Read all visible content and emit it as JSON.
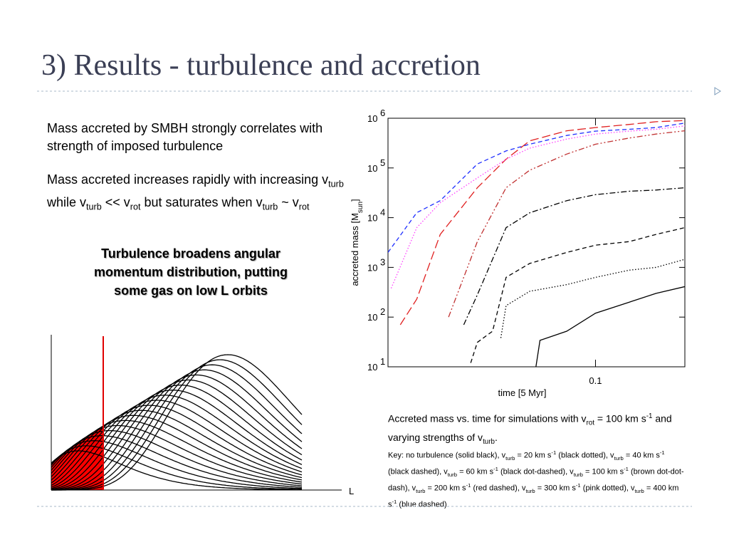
{
  "header": {
    "title": "3) Results - turbulence and accretion"
  },
  "body": {
    "bullets": [
      [
        "Mass accreted by SMBH strongly correlates with strength of imposed turbulence"
      ],
      [
        "Mass accreted increases rapidly with increasing v",
        {
          "sub": "turb"
        },
        " while v",
        {
          "sub": "turb"
        },
        " << v",
        {
          "sub": "rot"
        },
        " but saturates when v",
        {
          "sub": "turb"
        },
        " ~ v",
        {
          "sub": "rot"
        }
      ]
    ],
    "highlight": "Turbulence broadens angular momentum distribution, putting some gas on low L orbits"
  },
  "diagram": {
    "axis_label": "L"
  },
  "caption": [
    "Accreted mass vs. time for simulations with v",
    {
      "sub": "rot"
    },
    " = 100 km s",
    {
      "sup": "-1"
    },
    " and varying strengths of v",
    {
      "sub": "turb"
    },
    "."
  ],
  "key": [
    "Key: no turbulence (solid black), v",
    {
      "sub": "turb"
    },
    " = 20 km s",
    {
      "sup": "-1"
    },
    " (black dotted), v",
    {
      "sub": "turb"
    },
    " = 40 km s",
    {
      "sup": "-1"
    },
    " (black dashed), v",
    {
      "sub": "turb"
    },
    " = 60 km s",
    {
      "sup": "-1"
    },
    " (black dot-dashed), v",
    {
      "sub": "turb"
    },
    " = 100 km s",
    {
      "sup": "-1"
    },
    " (brown dot-dot-dash), v",
    {
      "sub": "turb"
    },
    " = 200 km s",
    {
      "sup": "-1"
    },
    " (red dashed), v",
    {
      "sub": "turb"
    },
    " = 300 km s",
    {
      "sup": "-1"
    },
    " (pink dotted), v",
    {
      "sub": "turb"
    },
    " = 400 km s",
    {
      "sup": "-1"
    },
    " (blue dashed)"
  ],
  "chart_data": {
    "type": "line",
    "xlabel": "time [5 Myr]",
    "ylabel": [
      "accreted mass [M",
      {
        "sub": "sun"
      },
      "]"
    ],
    "xscale": "log",
    "yscale": "log",
    "xlim": [
      0.02,
      0.2
    ],
    "ylim": [
      10,
      1000000
    ],
    "xticks": [
      0.1
    ],
    "yticks": [
      {
        "value": 10,
        "label": "10",
        "exponent": "1"
      },
      {
        "value": 100,
        "label": "10",
        "exponent": "2"
      },
      {
        "value": 1000,
        "label": "10",
        "exponent": "3"
      },
      {
        "value": 10000,
        "label": "10",
        "exponent": "4"
      },
      {
        "value": 100000,
        "label": "10",
        "exponent": "5"
      },
      {
        "value": 1000000,
        "label": "10",
        "exponent": "6"
      }
    ],
    "series": [
      {
        "color": "#000000",
        "style": "solid",
        "x": [
          0.063,
          0.065,
          0.08,
          0.1,
          0.13,
          0.16,
          0.2
        ],
        "values": [
          10,
          34,
          52,
          120,
          200,
          300,
          410
        ]
      },
      {
        "color": "#000000",
        "style": "dotted",
        "x": [
          0.048,
          0.05,
          0.06,
          0.08,
          0.1,
          0.13,
          0.16,
          0.2
        ],
        "values": [
          38,
          170,
          330,
          450,
          630,
          880,
          1000,
          1450
        ]
      },
      {
        "color": "#000000",
        "style": "dashed",
        "x": [
          0.038,
          0.04,
          0.045,
          0.05,
          0.06,
          0.08,
          0.1,
          0.13,
          0.16,
          0.2
        ],
        "values": [
          12,
          31,
          52,
          630,
          1200,
          2000,
          2800,
          3300,
          4600,
          6300
        ]
      },
      {
        "color": "#000000",
        "style": "dashdot",
        "x": [
          0.036,
          0.04,
          0.05,
          0.06,
          0.08,
          0.1,
          0.13,
          0.16,
          0.2
        ],
        "values": [
          70,
          280,
          6300,
          12500,
          22000,
          29000,
          34000,
          36000,
          40000
        ]
      },
      {
        "color": "#c03030",
        "style": "dashdotdot",
        "x": [
          0.032,
          0.04,
          0.05,
          0.06,
          0.08,
          0.1,
          0.13,
          0.16,
          0.2
        ],
        "values": [
          100,
          3300,
          40000,
          90000,
          190000,
          300000,
          400000,
          480000,
          560000
        ]
      },
      {
        "color": "#e02020",
        "style": "longdash",
        "x": [
          0.022,
          0.025,
          0.03,
          0.04,
          0.05,
          0.06,
          0.08,
          0.1,
          0.13,
          0.16,
          0.2
        ],
        "values": [
          70,
          230,
          4600,
          40000,
          150000,
          350000,
          560000,
          650000,
          750000,
          850000,
          900000
        ]
      },
      {
        "color": "#ff40ff",
        "style": "dotted",
        "x": [
          0.0205,
          0.025,
          0.03,
          0.04,
          0.05,
          0.06,
          0.08,
          0.1,
          0.13,
          0.16,
          0.2
        ],
        "values": [
          380,
          6300,
          20000,
          63000,
          150000,
          250000,
          380000,
          480000,
          550000,
          600000,
          700000
        ]
      },
      {
        "color": "#2030ff",
        "style": "dashed",
        "x": [
          0.02,
          0.025,
          0.03,
          0.04,
          0.05,
          0.06,
          0.08,
          0.1,
          0.13,
          0.16,
          0.2
        ],
        "values": [
          2000,
          12600,
          22000,
          120000,
          220000,
          300000,
          450000,
          550000,
          600000,
          650000,
          800000
        ]
      }
    ]
  }
}
